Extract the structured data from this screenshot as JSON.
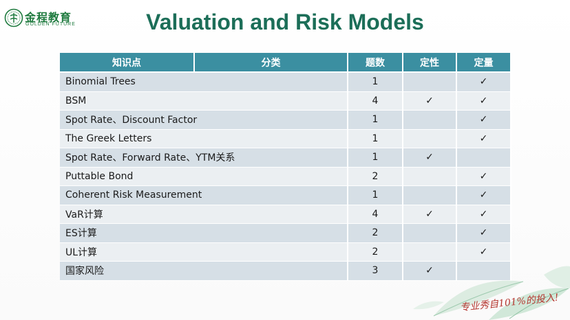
{
  "logo": {
    "name_cn": "金程教育",
    "name_en": "GOLDEN FUTURE"
  },
  "title": "Valuation and Risk Models",
  "table": {
    "headers": [
      "知识点",
      "分类",
      "题数",
      "定性",
      "定量"
    ],
    "check_mark": "✓",
    "rows": [
      {
        "topic": "Binomial Trees",
        "count": "1",
        "qualitative": "",
        "quantitative": "✓"
      },
      {
        "topic": "BSM",
        "count": "4",
        "qualitative": "✓",
        "quantitative": "✓"
      },
      {
        "topic": "Spot Rate、Discount Factor",
        "count": "1",
        "qualitative": "",
        "quantitative": "✓"
      },
      {
        "topic": "The Greek Letters",
        "count": "1",
        "qualitative": "",
        "quantitative": "✓"
      },
      {
        "topic": "Spot Rate、Forward Rate、YTM关系",
        "count": "1",
        "qualitative": "✓",
        "quantitative": ""
      },
      {
        "topic": "Puttable Bond",
        "count": "2",
        "qualitative": "",
        "quantitative": "✓"
      },
      {
        "topic": "Coherent Risk Measurement",
        "count": "1",
        "qualitative": "",
        "quantitative": "✓"
      },
      {
        "topic": "VaR计算",
        "count": "4",
        "qualitative": "✓",
        "quantitative": "✓"
      },
      {
        "topic": "ES计算",
        "count": "2",
        "qualitative": "",
        "quantitative": "✓"
      },
      {
        "topic": "UL计算",
        "count": "2",
        "qualitative": "",
        "quantitative": "✓"
      },
      {
        "topic": "国家风险",
        "count": "3",
        "qualitative": "✓",
        "quantitative": ""
      }
    ]
  },
  "watermark_text": "金程教育",
  "slogan": "专业秀自101%的投入!",
  "colors": {
    "header_bg": "#3b8fa1",
    "row_odd": "#d6dfe6",
    "row_even": "#ebeff2",
    "title": "#1c6e58",
    "brand_green": "#1e7a3e"
  }
}
